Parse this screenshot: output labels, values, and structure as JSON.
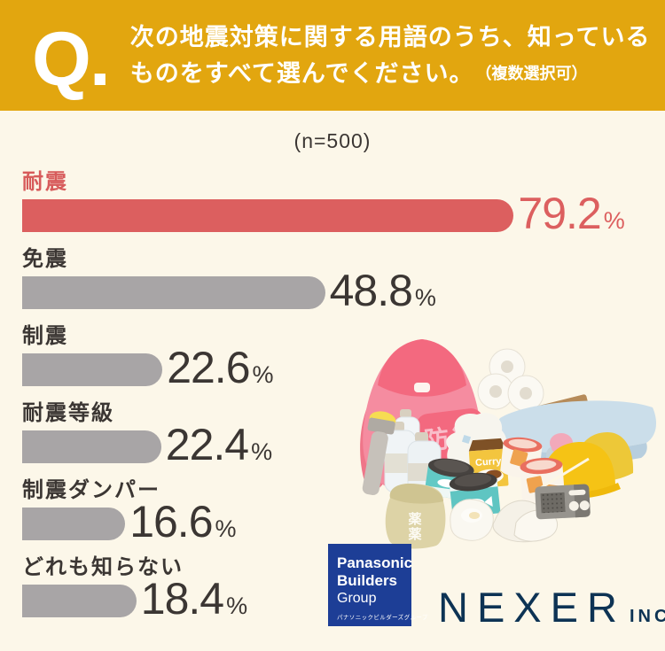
{
  "page": {
    "background": "#FCF7E9"
  },
  "header": {
    "background": "#E2A60F",
    "q_mark": "Q.",
    "question_line1": "次の地震対策に関する用語のうち、知っている",
    "question_line2": "ものをすべて選んでください。",
    "question_note": "（複数選択可）"
  },
  "chart_data": {
    "type": "bar",
    "orientation": "horizontal",
    "title": "次の地震対策に関する用語のうち、知っているものをすべて選んでください。（複数選択可）",
    "sample_note": "(n=500)",
    "categories": [
      "耐震",
      "免震",
      "制震",
      "耐震等級",
      "制震ダンパー",
      "どれも知らない"
    ],
    "values": [
      79.2,
      48.8,
      22.6,
      22.4,
      16.6,
      18.4
    ],
    "value_labels": [
      "79.2",
      "48.8",
      "22.6",
      "22.4",
      "16.6",
      "18.4"
    ],
    "unit": "%",
    "xlim": [
      0,
      100
    ],
    "highlight_index": 0,
    "highlight_color": "#DC5F5F",
    "bar_color": "#A8A5A6",
    "text_color": "#3B3633",
    "legend": "none",
    "grid": false
  },
  "illustration": {
    "backpack_label": "防災",
    "curry_label": "Curry",
    "medicine_label": "薬"
  },
  "footer": {
    "panasonic_logo": {
      "background": "#1D3E96",
      "line1": "Panasonic",
      "line2": "Builders",
      "line3": "Group",
      "line4": "パナソニックビルダーズグループ"
    },
    "nexer_logo": {
      "color": "#0D3354",
      "name": "NEXER",
      "suffix": "INC."
    }
  }
}
